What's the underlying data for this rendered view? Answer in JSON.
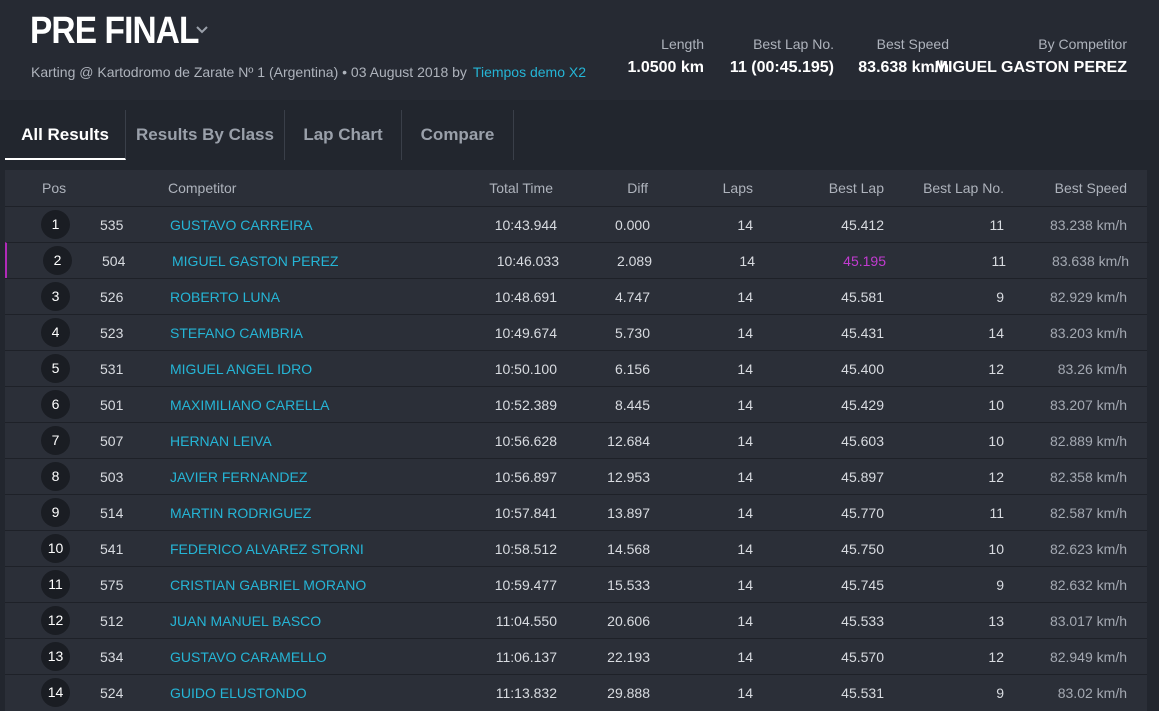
{
  "header": {
    "title": "PRE FINAL",
    "subtitle": "Karting @ Kartodromo de Zarate Nº 1 (Argentina) • 03 August 2018 by",
    "link": "Tiempos demo X2"
  },
  "stats": [
    {
      "label": "Length",
      "value": "1.0500 km"
    },
    {
      "label": "Best Lap No.",
      "value": "11 (00:45.195)"
    },
    {
      "label": "Best Speed",
      "value": "83.638 km/h"
    },
    {
      "label": "By Competitor",
      "value": "MIGUEL GASTON PEREZ"
    }
  ],
  "tabs": [
    "All Results",
    "Results By Class",
    "Lap Chart",
    "Compare"
  ],
  "table": {
    "columns": [
      "Pos",
      "Competitor",
      "Total Time",
      "Diff",
      "Laps",
      "Best Lap",
      "Best Lap No.",
      "Best Speed"
    ],
    "rows": [
      [
        "1",
        "535",
        "GUSTAVO CARREIRA",
        "10:43.944",
        "0.000",
        "14",
        "45.412",
        "11",
        "83.238 km/h"
      ],
      [
        "2",
        "504",
        "MIGUEL GASTON PEREZ",
        "10:46.033",
        "2.089",
        "14",
        "45.195",
        "11",
        "83.638 km/h"
      ],
      [
        "3",
        "526",
        "ROBERTO LUNA",
        "10:48.691",
        "4.747",
        "14",
        "45.581",
        "9",
        "82.929 km/h"
      ],
      [
        "4",
        "523",
        "STEFANO CAMBRIA",
        "10:49.674",
        "5.730",
        "14",
        "45.431",
        "14",
        "83.203 km/h"
      ],
      [
        "5",
        "531",
        "MIGUEL ANGEL IDRO",
        "10:50.100",
        "6.156",
        "14",
        "45.400",
        "12",
        "83.26 km/h"
      ],
      [
        "6",
        "501",
        "MAXIMILIANO CARELLA",
        "10:52.389",
        "8.445",
        "14",
        "45.429",
        "10",
        "83.207 km/h"
      ],
      [
        "7",
        "507",
        "HERNAN LEIVA",
        "10:56.628",
        "12.684",
        "14",
        "45.603",
        "10",
        "82.889 km/h"
      ],
      [
        "8",
        "503",
        "JAVIER FERNANDEZ",
        "10:56.897",
        "12.953",
        "14",
        "45.897",
        "12",
        "82.358 km/h"
      ],
      [
        "9",
        "514",
        "MARTIN RODRIGUEZ",
        "10:57.841",
        "13.897",
        "14",
        "45.770",
        "11",
        "82.587 km/h"
      ],
      [
        "10",
        "541",
        "FEDERICO ALVAREZ STORNI",
        "10:58.512",
        "14.568",
        "14",
        "45.750",
        "10",
        "82.623 km/h"
      ],
      [
        "11",
        "575",
        "CRISTIAN GABRIEL MORANO",
        "10:59.477",
        "15.533",
        "14",
        "45.745",
        "9",
        "82.632 km/h"
      ],
      [
        "12",
        "512",
        "JUAN MANUEL BASCO",
        "11:04.550",
        "20.606",
        "14",
        "45.533",
        "13",
        "83.017 km/h"
      ],
      [
        "13",
        "534",
        "GUSTAVO CARAMELLO",
        "11:06.137",
        "22.193",
        "14",
        "45.570",
        "12",
        "82.949 km/h"
      ],
      [
        "14",
        "524",
        "GUIDO ELUSTONDO",
        "11:13.832",
        "29.888",
        "14",
        "45.531",
        "9",
        "83.02 km/h"
      ]
    ]
  }
}
